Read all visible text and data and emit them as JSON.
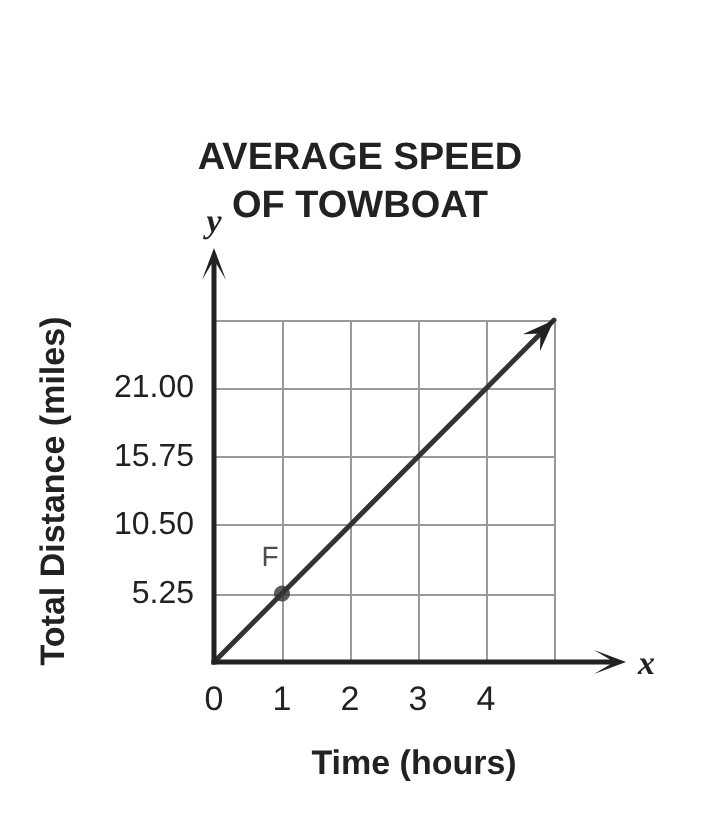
{
  "chart_data": {
    "type": "line",
    "title": "AVERAGE SPEED\nOF TOWBOAT",
    "xlabel": "Time (hours)",
    "ylabel": "Total Distance (miles)",
    "annotations": [
      "y",
      "x"
    ],
    "xlim": [
      0,
      5
    ],
    "xticks": [
      0,
      1,
      2,
      3,
      4,
      {
        "value": 5,
        "label": null
      }
    ],
    "ylim": [
      0,
      26.25
    ],
    "yticks": [
      5.25,
      {
        "value": 10.5,
        "label": "10.50"
      },
      15.75,
      {
        "value": 21,
        "label": "21.00"
      },
      {
        "value": 26.25,
        "label": null
      }
    ],
    "grid": true,
    "marker": "none",
    "line_style": "solid",
    "series": [
      {
        "color": "#333333",
        "x": [
          0,
          1,
          2,
          3,
          4,
          5
        ],
        "values": [
          0,
          5.25,
          10.5,
          15.75,
          21,
          26.25
        ]
      },
      {
        "type": "scatter",
        "color": "#333333",
        "marker": "circle",
        "x": [
          1
        ],
        "values": [
          5.25
        ],
        "value_labels": [
          "F"
        ]
      }
    ]
  }
}
